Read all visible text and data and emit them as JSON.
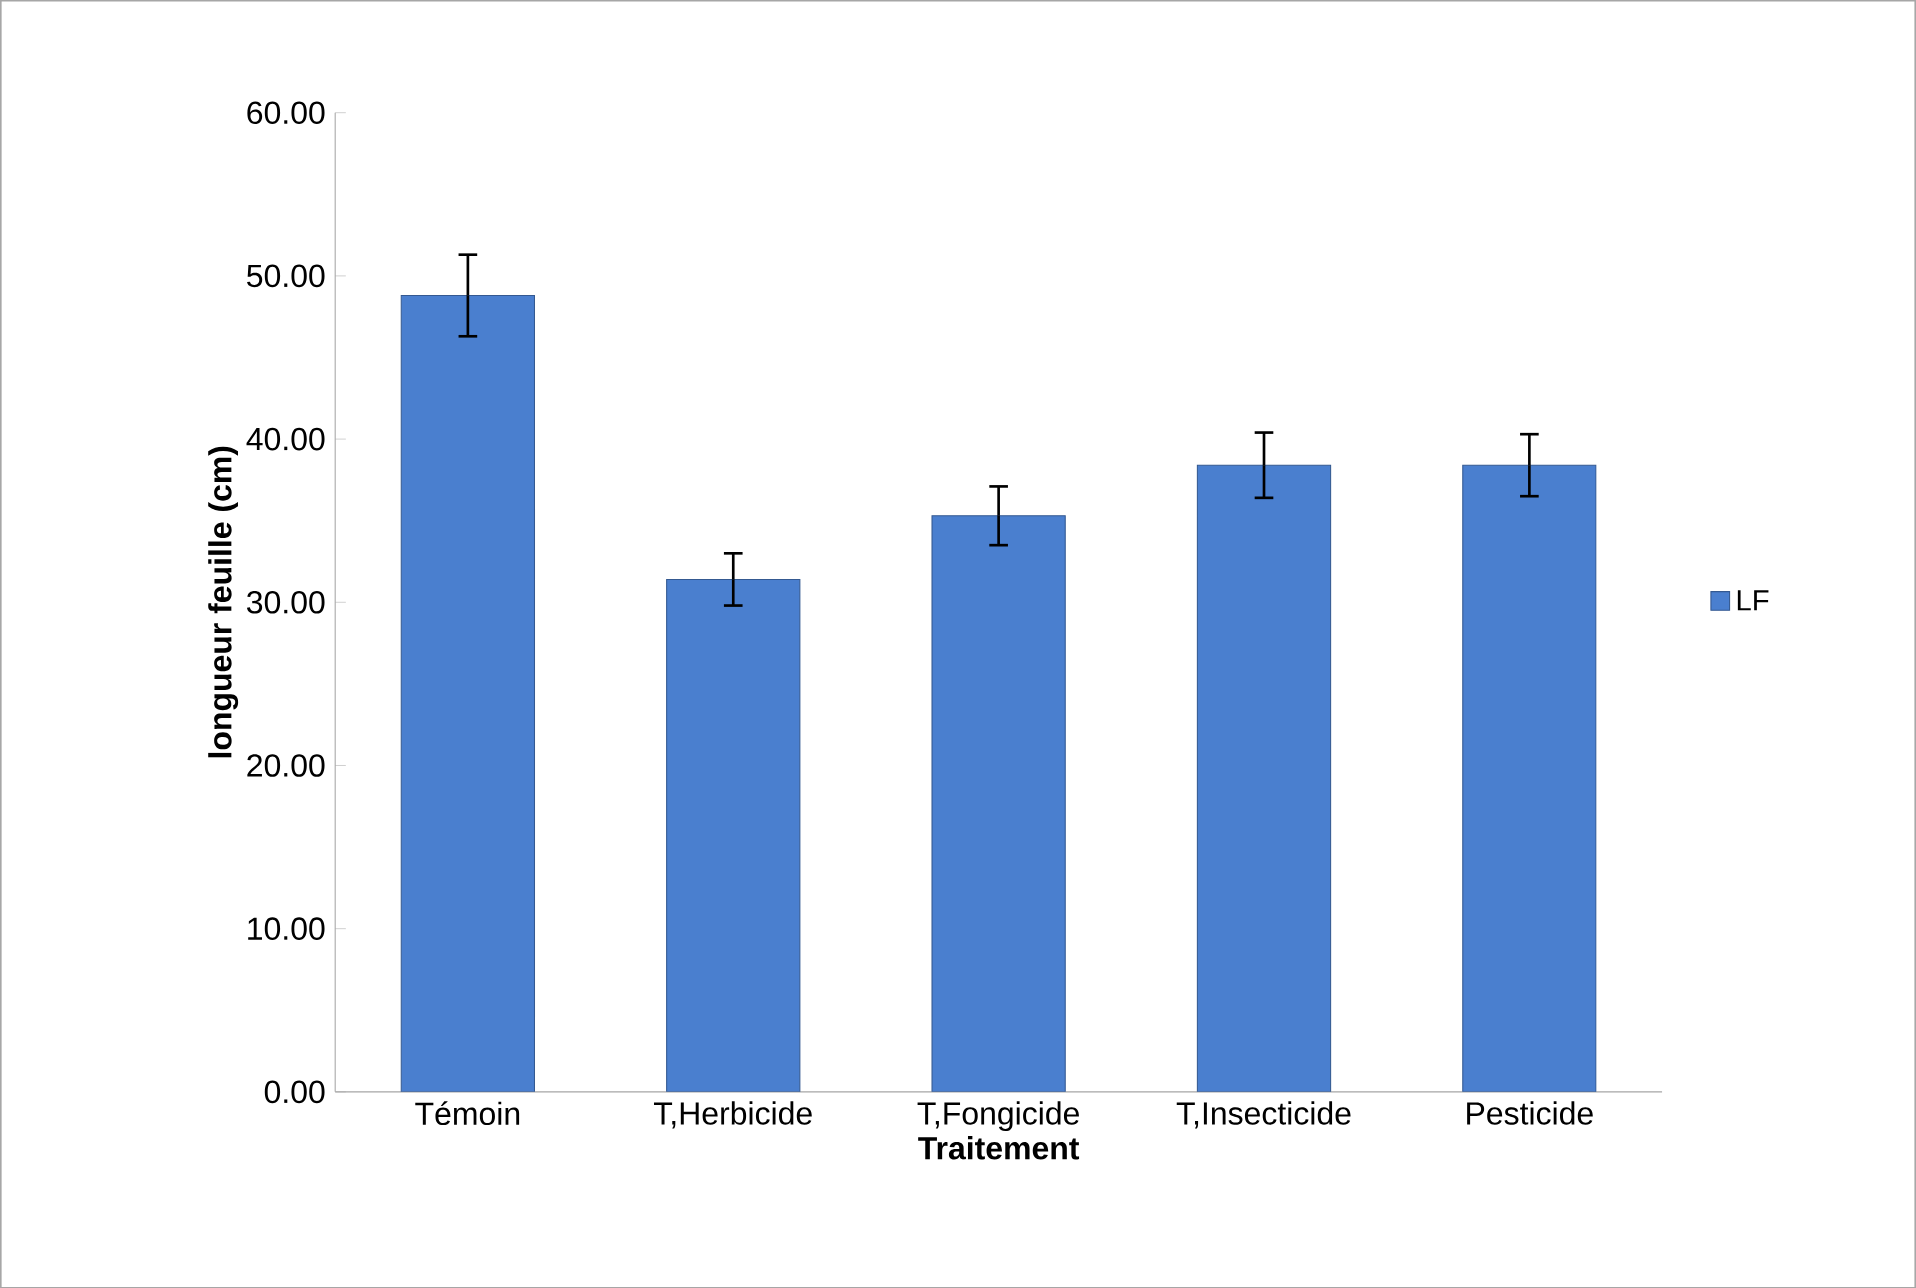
{
  "chart_data": {
    "type": "bar",
    "xlabel": "Traitement",
    "ylabel": "longueur feuille (cm)",
    "categories": [
      "Témoin",
      "T,Herbicide",
      "T,Fongicide",
      "T,Insecticide",
      "Pesticide"
    ],
    "series": [
      {
        "name": "LF",
        "color": "#4a7fcf",
        "values": [
          48.8,
          31.4,
          35.3,
          38.4,
          38.4
        ],
        "errors": [
          2.5,
          1.6,
          1.8,
          2.0,
          1.9
        ]
      }
    ],
    "ylim": [
      0,
      60
    ],
    "yticks": [
      {
        "value": 0,
        "label": "0.00"
      },
      {
        "value": 10,
        "label": "10.00"
      },
      {
        "value": 20,
        "label": "20.00"
      },
      {
        "value": 30,
        "label": "30.00"
      },
      {
        "value": 40,
        "label": "40.00"
      },
      {
        "value": 50,
        "label": "50.00"
      },
      {
        "value": 60,
        "label": "60.00"
      }
    ],
    "legend": "right",
    "grid": false
  }
}
